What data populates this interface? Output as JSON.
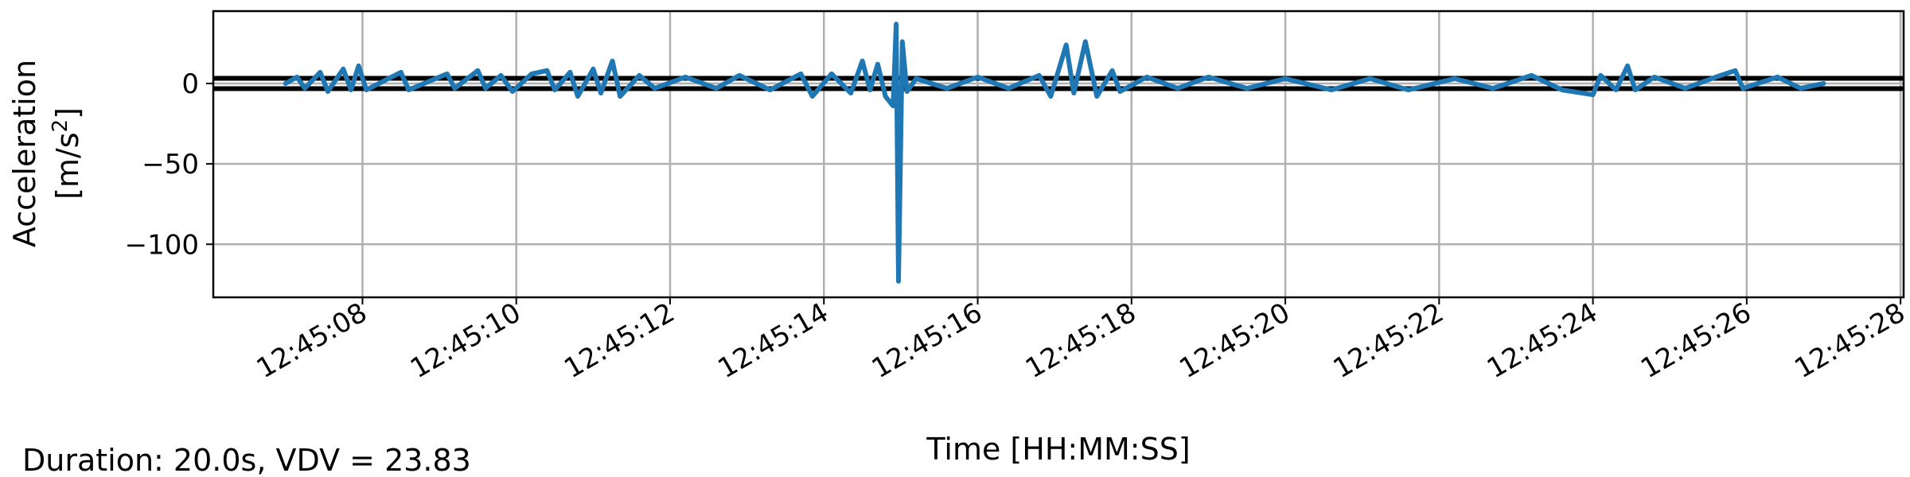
{
  "chart_data": {
    "type": "line",
    "title": "",
    "xlabel": "Time [HH:MM:SS]",
    "ylabel_line1": "Acceleration",
    "ylabel_line2": "[m/s",
    "ylabel_sup": "2",
    "ylabel_close": "]",
    "footer": "Duration: 20.0s, VDV = 23.83",
    "grid": true,
    "xlim": [
      "12:45:06.06",
      "12:45:28.04"
    ],
    "ylim": [
      -133,
      45
    ],
    "x_ticks": [
      "12:45:08",
      "12:45:10",
      "12:45:12",
      "12:45:14",
      "12:45:16",
      "12:45:18",
      "12:45:20",
      "12:45:22",
      "12:45:24",
      "12:45:26",
      "12:45:28"
    ],
    "y_ticks": [
      0,
      -50,
      -100
    ],
    "y_tick_labels": [
      "0",
      "−50",
      "−100"
    ],
    "threshold_lines": [
      3.2,
      -3.2
    ],
    "threshold_color": "#000000",
    "series_color": "#1f77b4",
    "series": [
      {
        "x_start": "12:45:07.00",
        "x_end": "12:45:27.00",
        "values": [
          {
            "t": "12:45:07.00",
            "y": 0
          },
          {
            "t": "12:45:07.15",
            "y": 4
          },
          {
            "t": "12:45:07.25",
            "y": -3
          },
          {
            "t": "12:45:07.45",
            "y": 7
          },
          {
            "t": "12:45:07.55",
            "y": -5
          },
          {
            "t": "12:45:07.75",
            "y": 9
          },
          {
            "t": "12:45:07.85",
            "y": -4
          },
          {
            "t": "12:45:07.95",
            "y": 11
          },
          {
            "t": "12:45:08.05",
            "y": -4
          },
          {
            "t": "12:45:08.50",
            "y": 7
          },
          {
            "t": "12:45:08.60",
            "y": -4
          },
          {
            "t": "12:45:09.10",
            "y": 6
          },
          {
            "t": "12:45:09.20",
            "y": -3
          },
          {
            "t": "12:45:09.50",
            "y": 8
          },
          {
            "t": "12:45:09.60",
            "y": -3
          },
          {
            "t": "12:45:09.80",
            "y": 5
          },
          {
            "t": "12:45:09.95",
            "y": -5
          },
          {
            "t": "12:45:10.20",
            "y": 6
          },
          {
            "t": "12:45:10.40",
            "y": 8
          },
          {
            "t": "12:45:10.50",
            "y": -4
          },
          {
            "t": "12:45:10.70",
            "y": 7
          },
          {
            "t": "12:45:10.80",
            "y": -8
          },
          {
            "t": "12:45:11.00",
            "y": 9
          },
          {
            "t": "12:45:11.10",
            "y": -6
          },
          {
            "t": "12:45:11.25",
            "y": 14
          },
          {
            "t": "12:45:11.35",
            "y": -8
          },
          {
            "t": "12:45:11.60",
            "y": 5
          },
          {
            "t": "12:45:11.80",
            "y": -3
          },
          {
            "t": "12:45:12.20",
            "y": 4
          },
          {
            "t": "12:45:12.60",
            "y": -3
          },
          {
            "t": "12:45:12.90",
            "y": 5
          },
          {
            "t": "12:45:13.30",
            "y": -4
          },
          {
            "t": "12:45:13.70",
            "y": 6
          },
          {
            "t": "12:45:13.85",
            "y": -8
          },
          {
            "t": "12:45:14.10",
            "y": 6
          },
          {
            "t": "12:45:14.35",
            "y": -6
          },
          {
            "t": "12:45:14.50",
            "y": 14
          },
          {
            "t": "12:45:14.60",
            "y": -4
          },
          {
            "t": "12:45:14.70",
            "y": 12
          },
          {
            "t": "12:45:14.80",
            "y": -8
          },
          {
            "t": "12:45:14.90",
            "y": -14
          },
          {
            "t": "12:45:14.94",
            "y": 37
          },
          {
            "t": "12:45:14.97",
            "y": -123
          },
          {
            "t": "12:45:15.02",
            "y": 26
          },
          {
            "t": "12:45:15.08",
            "y": -5
          },
          {
            "t": "12:45:15.20",
            "y": 3
          },
          {
            "t": "12:45:15.60",
            "y": -3
          },
          {
            "t": "12:45:16.00",
            "y": 4
          },
          {
            "t": "12:45:16.40",
            "y": -3
          },
          {
            "t": "12:45:16.80",
            "y": 5
          },
          {
            "t": "12:45:16.95",
            "y": -8
          },
          {
            "t": "12:45:17.15",
            "y": 24
          },
          {
            "t": "12:45:17.25",
            "y": -6
          },
          {
            "t": "12:45:17.40",
            "y": 26
          },
          {
            "t": "12:45:17.55",
            "y": -8
          },
          {
            "t": "12:45:17.75",
            "y": 8
          },
          {
            "t": "12:45:17.85",
            "y": -5
          },
          {
            "t": "12:45:18.20",
            "y": 4
          },
          {
            "t": "12:45:18.60",
            "y": -3
          },
          {
            "t": "12:45:19.00",
            "y": 4
          },
          {
            "t": "12:45:19.50",
            "y": -3
          },
          {
            "t": "12:45:20.00",
            "y": 3
          },
          {
            "t": "12:45:20.60",
            "y": -4
          },
          {
            "t": "12:45:21.10",
            "y": 3
          },
          {
            "t": "12:45:21.60",
            "y": -4
          },
          {
            "t": "12:45:22.20",
            "y": 3
          },
          {
            "t": "12:45:22.70",
            "y": -3
          },
          {
            "t": "12:45:23.20",
            "y": 5
          },
          {
            "t": "12:45:23.60",
            "y": -4
          },
          {
            "t": "12:45:24.00",
            "y": -7
          },
          {
            "t": "12:45:24.10",
            "y": 5
          },
          {
            "t": "12:45:24.30",
            "y": -4
          },
          {
            "t": "12:45:24.45",
            "y": 11
          },
          {
            "t": "12:45:24.55",
            "y": -4
          },
          {
            "t": "12:45:24.80",
            "y": 4
          },
          {
            "t": "12:45:25.20",
            "y": -3
          },
          {
            "t": "12:45:25.60",
            "y": 4
          },
          {
            "t": "12:45:25.85",
            "y": 8
          },
          {
            "t": "12:45:25.95",
            "y": -3
          },
          {
            "t": "12:45:26.40",
            "y": 4
          },
          {
            "t": "12:45:26.70",
            "y": -3
          },
          {
            "t": "12:45:27.00",
            "y": 0
          }
        ]
      }
    ]
  }
}
